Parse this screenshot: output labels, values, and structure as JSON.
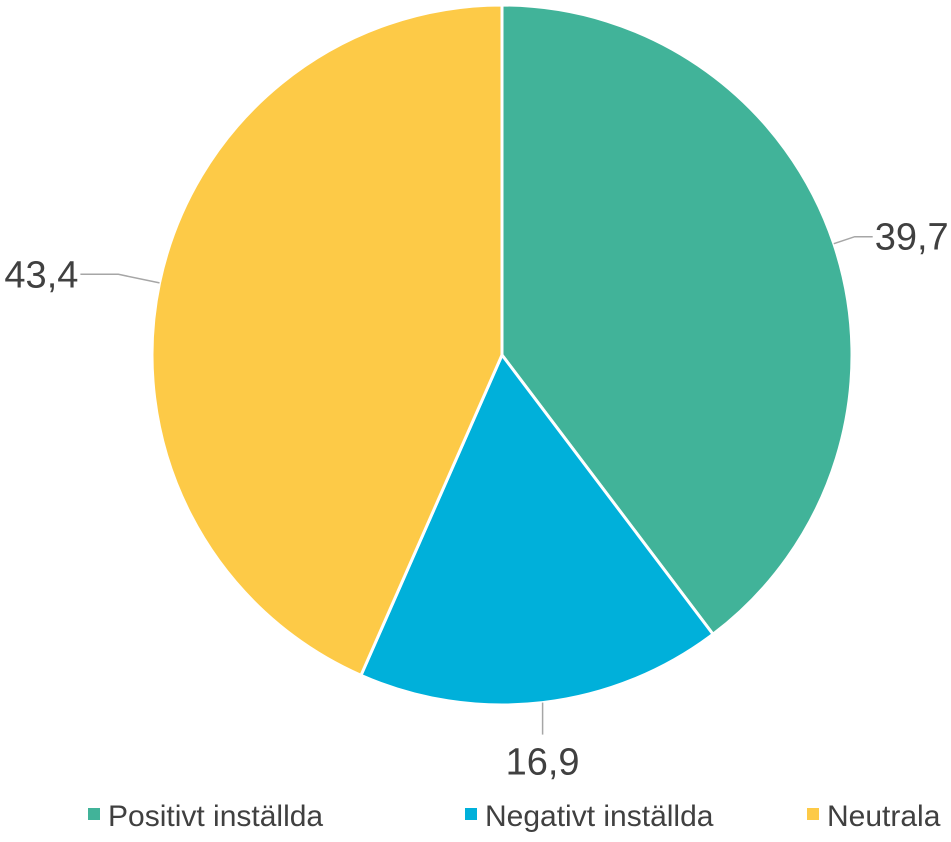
{
  "chart_data": {
    "type": "pie",
    "categories": [
      "Positivt inställda",
      "Negativt inställda",
      "Neutrala"
    ],
    "values": [
      39.7,
      16.9,
      43.4
    ],
    "value_labels": [
      "39,7",
      "16,9",
      "43,4"
    ],
    "colors": [
      "#41b399",
      "#00b0da",
      "#fdca47"
    ],
    "title": "",
    "legend_position": "bottom",
    "start_angle": "12 o'clock",
    "direction": "clockwise",
    "leader_line_color": "#a6a6a6",
    "text_color": "#404040"
  }
}
